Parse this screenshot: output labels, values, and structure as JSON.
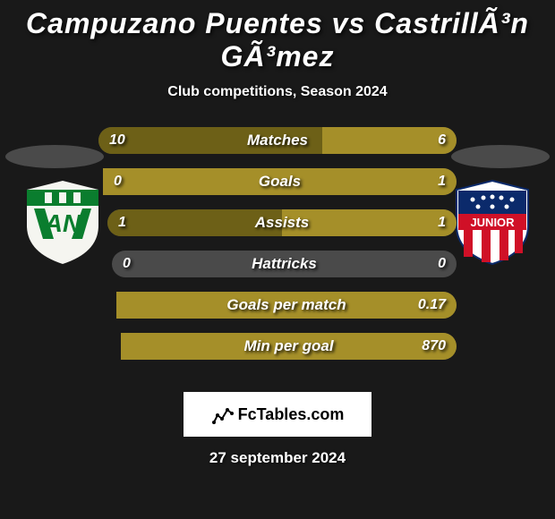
{
  "title": "Campuzano Puentes vs CastrillÃ³n GÃ³mez",
  "subtitle": "Club competitions, Season 2024",
  "date": "27 september 2024",
  "logo_text": "FcTables.com",
  "colors": {
    "background": "#191919",
    "bar_bg": "#4a4a4a",
    "left_fill": "#6d6017",
    "right_fill": "#a58f29",
    "ellipse_left": "#4a4a4a",
    "ellipse_right": "#4a4a4a",
    "text": "#ffffff",
    "logo_bg": "#ffffff",
    "logo_text": "#000000"
  },
  "stats": [
    {
      "label": "Matches",
      "left_val": "10",
      "right_val": "6",
      "left_pct": 62.5,
      "right_pct": 37.5
    },
    {
      "label": "Goals",
      "left_val": "0",
      "right_val": "1",
      "left_pct": 0,
      "right_pct": 100
    },
    {
      "label": "Assists",
      "left_val": "1",
      "right_val": "1",
      "left_pct": 50,
      "right_pct": 50
    },
    {
      "label": "Hattricks",
      "left_val": "0",
      "right_val": "0",
      "left_pct": 0,
      "right_pct": 0
    },
    {
      "label": "Goals per match",
      "left_val": "",
      "right_val": "0.17",
      "left_pct": 0,
      "right_pct": 100
    },
    {
      "label": "Min per goal",
      "left_val": "",
      "right_val": "870",
      "left_pct": 0,
      "right_pct": 100
    }
  ],
  "badges": {
    "left": {
      "shield_bg": "#f5f5f0",
      "stripe_colors": [
        "#0a7d2e",
        "#ffffff"
      ],
      "text": "AN",
      "text_color": "#0a7d2e",
      "top_band": "#0a7d2e"
    },
    "right": {
      "shield_bg": "#ffffff",
      "top_bg": "#0b2a6b",
      "star_color": "#ffffff",
      "banner_bg": "#d01027",
      "banner_text": "JUNIOR",
      "stripe_colors": [
        "#d01027",
        "#ffffff"
      ]
    }
  }
}
